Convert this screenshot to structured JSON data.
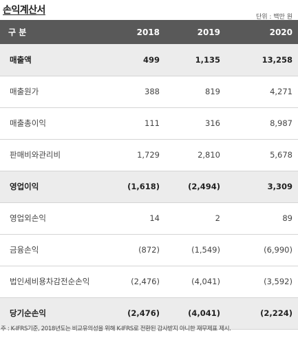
{
  "title": "손익계산서",
  "unit": "단위 : 백만 원",
  "header": [
    "구 분",
    "2018",
    "2019",
    "2020"
  ],
  "rows": [
    {
      "label": "매출액",
      "values": [
        "499",
        "1,135",
        "13,258"
      ],
      "bold": true
    },
    {
      "label": "매출원가",
      "values": [
        "388",
        "819",
        "4,271"
      ],
      "bold": false
    },
    {
      "label": "매출총이익",
      "values": [
        "111",
        "316",
        "8,987"
      ],
      "bold": false
    },
    {
      "label": "판매비와관리비",
      "values": [
        "1,729",
        "2,810",
        "5,678"
      ],
      "bold": false
    },
    {
      "label": "영업이익",
      "values": [
        "(1,618)",
        "(2,494)",
        "3,309"
      ],
      "bold": true
    },
    {
      "label": "영업외손익",
      "values": [
        "14",
        "2",
        "89"
      ],
      "bold": false
    },
    {
      "label": "금융손익",
      "values": [
        "(872)",
        "(1,549)",
        "(6,990)"
      ],
      "bold": false
    },
    {
      "label": "법인세비용차감전순손익",
      "values": [
        "(2,476)",
        "(4,041)",
        "(3,592)"
      ],
      "bold": false
    },
    {
      "label": "당기순손익",
      "values": [
        "(2,476)",
        "(4,041)",
        "(2,224)"
      ],
      "bold": true
    }
  ],
  "footnote": "주 : K-IFRS기준, 2018년도는 비교유의성을 위해 K-IFRS로 전환된 감사받지 아니한 재무제표 제시."
}
